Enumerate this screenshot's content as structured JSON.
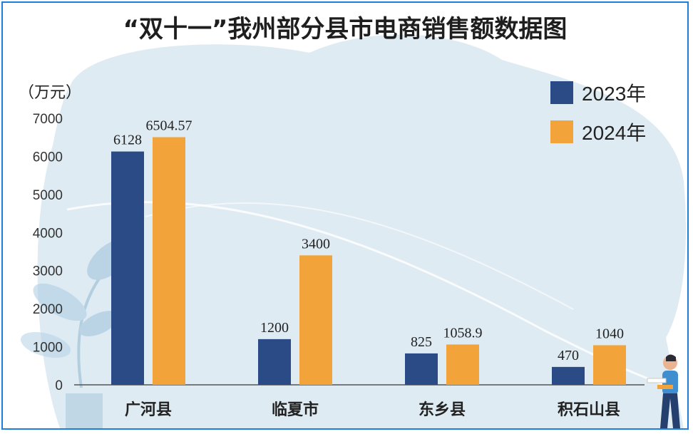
{
  "chart_data": {
    "type": "bar",
    "title": "“双十一”我州部分县市电商销售额数据图",
    "ylabel": "（万元）",
    "xlabel": "",
    "ylim": [
      0,
      7000
    ],
    "yticks": [
      "0",
      "1000",
      "2000",
      "3000",
      "4000",
      "5000",
      "6000",
      "7000"
    ],
    "categories": [
      "广河县",
      "临夏市",
      "东乡县",
      "积石山县"
    ],
    "series": [
      {
        "name": "2023年",
        "color": "#2a4b86",
        "values": [
          6128,
          1200,
          825,
          470
        ],
        "labels": [
          "6128",
          "1200",
          "825",
          "470"
        ]
      },
      {
        "name": "2024年",
        "color": "#f2a33a",
        "values": [
          6504.57,
          3400,
          1058.9,
          1040
        ],
        "labels": [
          "6504.57",
          "3400",
          "1058.9",
          "1040"
        ]
      }
    ],
    "legend": "top-right",
    "grid": false
  },
  "colors": {
    "background_blob": "#dbe9f1",
    "axis": "#555555"
  }
}
